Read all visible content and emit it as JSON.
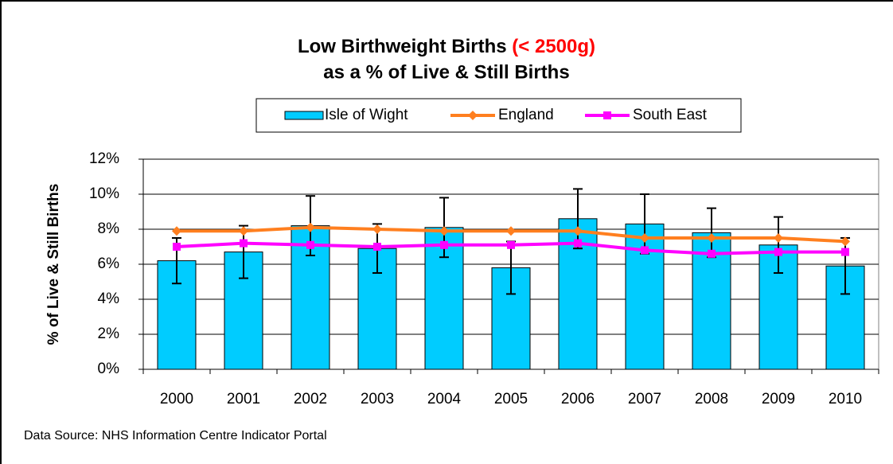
{
  "chart_data": {
    "type": "bar",
    "title": "Low Birthweight Births",
    "title_highlight": "(< 2500g)",
    "subtitle": "as a % of Live & Still Births",
    "y_label": "% of Live & Still Births",
    "source": "Data Source: NHS Information Centre Indicator Portal",
    "categories": [
      "2000",
      "2001",
      "2002",
      "2003",
      "2004",
      "2005",
      "2006",
      "2007",
      "2008",
      "2009",
      "2010"
    ],
    "series": [
      {
        "name": "Isle of Wight",
        "type": "bar",
        "color": "#00ccff",
        "values": [
          6.2,
          6.7,
          8.2,
          6.9,
          8.1,
          5.8,
          8.6,
          8.3,
          7.8,
          7.1,
          5.9
        ],
        "errors": [
          1.3,
          1.5,
          1.7,
          1.4,
          1.7,
          1.5,
          1.7,
          1.7,
          1.4,
          1.6,
          1.6
        ]
      },
      {
        "name": "England",
        "type": "line",
        "color": "#ff7f1f",
        "values": [
          7.9,
          7.9,
          8.1,
          8.0,
          7.9,
          7.9,
          7.9,
          7.5,
          7.5,
          7.5,
          7.3
        ]
      },
      {
        "name": "South East",
        "type": "line",
        "color": "#ff00ff",
        "values": [
          7.0,
          7.2,
          7.1,
          7.0,
          7.1,
          7.1,
          7.2,
          6.8,
          6.6,
          6.7,
          6.7
        ]
      }
    ],
    "ylim": [
      0,
      12
    ],
    "yticks": [
      {
        "value": 0,
        "label": "0%"
      },
      {
        "value": 2,
        "label": "2%"
      },
      {
        "value": 4,
        "label": "4%"
      },
      {
        "value": 6,
        "label": "6%"
      },
      {
        "value": 8,
        "label": "8%"
      },
      {
        "value": 10,
        "label": "10%"
      },
      {
        "value": 12,
        "label": "12%"
      }
    ],
    "grid": true
  }
}
